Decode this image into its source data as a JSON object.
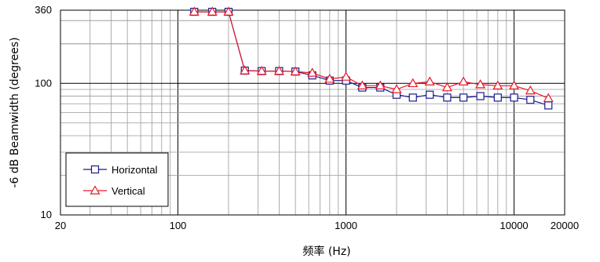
{
  "chart_data": {
    "type": "line",
    "xlabel": "频率 (Hz)",
    "ylabel": "-6 dB Beamwidth (degrees)",
    "x_scale": "log",
    "y_scale": "log",
    "xlim": [
      20,
      20000
    ],
    "ylim": [
      10,
      360
    ],
    "x_tick_labels": [
      "20",
      "100",
      "1000",
      "10000",
      "20000"
    ],
    "x_tick_values": [
      20,
      100,
      1000,
      10000,
      20000
    ],
    "y_tick_labels": [
      "10",
      "100",
      "360"
    ],
    "y_tick_values": [
      10,
      100,
      360
    ],
    "grid": true,
    "legend_position": "bottom-left",
    "x": [
      125,
      160,
      200,
      250,
      315,
      400,
      500,
      630,
      800,
      1000,
      1250,
      1600,
      2000,
      2500,
      3150,
      4000,
      5000,
      6300,
      8000,
      10000,
      12500,
      16000
    ],
    "series": [
      {
        "name": "Horizontal",
        "color": "#1a1a8c",
        "marker": "square",
        "values": [
          350,
          350,
          350,
          125,
          124,
          124,
          123,
          115,
          105,
          105,
          93,
          93,
          82,
          78,
          82,
          78,
          78,
          80,
          78,
          78,
          75,
          68
        ]
      },
      {
        "name": "Vertical",
        "color": "#e8182a",
        "marker": "triangle",
        "values": [
          350,
          350,
          350,
          125,
          124,
          124,
          123,
          120,
          108,
          112,
          96,
          96,
          90,
          100,
          103,
          93,
          103,
          98,
          96,
          96,
          88,
          77
        ]
      }
    ]
  }
}
